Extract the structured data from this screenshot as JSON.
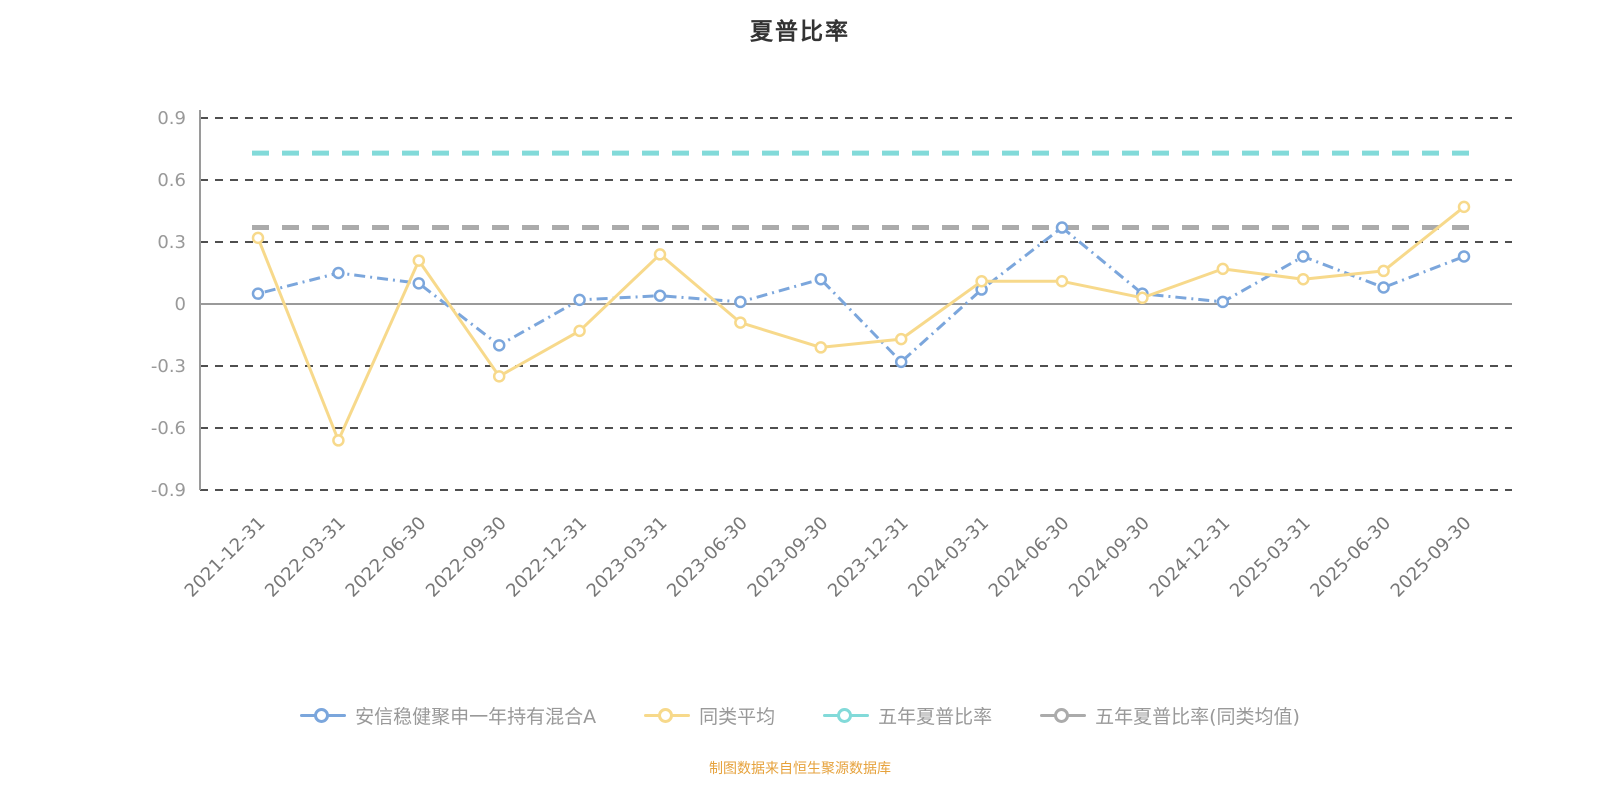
{
  "title": "夏普比率",
  "footer": "制图数据来自恒生聚源数据库",
  "chart_data": {
    "type": "line",
    "title": "夏普比率",
    "categories": [
      "2021-12-31",
      "2022-03-31",
      "2022-06-30",
      "2022-09-30",
      "2022-12-31",
      "2023-03-31",
      "2023-06-30",
      "2023-09-30",
      "2023-12-31",
      "2024-03-31",
      "2024-06-30",
      "2024-09-30",
      "2024-12-31",
      "2025-03-31",
      "2025-06-30",
      "2025-09-30"
    ],
    "series": [
      {
        "name": "安信稳健聚申一年持有混合A",
        "color": "#7BA6DC",
        "style": "dashed",
        "values": [
          0.05,
          0.15,
          0.1,
          -0.2,
          0.02,
          0.04,
          0.01,
          0.12,
          -0.28,
          0.07,
          0.37,
          0.05,
          0.01,
          0.23,
          0.08,
          0.23
        ]
      },
      {
        "name": "同类平均",
        "color": "#F7D98B",
        "style": "solid",
        "values": [
          0.32,
          -0.66,
          0.21,
          -0.35,
          -0.13,
          0.24,
          -0.09,
          -0.21,
          -0.17,
          0.11,
          0.11,
          0.03,
          0.17,
          0.12,
          0.16,
          0.47
        ]
      }
    ],
    "reference_lines": [
      {
        "name": "五年夏普比率",
        "color": "#82DAD9",
        "value": 0.73
      },
      {
        "name": "五年夏普比率(同类均值)",
        "color": "#ABABAB",
        "value": 0.37
      }
    ],
    "ylim": [
      -0.9,
      0.9
    ],
    "yticks": [
      0.9,
      0.6,
      0.3,
      0,
      -0.3,
      -0.6,
      -0.9
    ],
    "grid": "dashed horizontal",
    "legend_position": "bottom",
    "x_label_rotation": -45
  }
}
